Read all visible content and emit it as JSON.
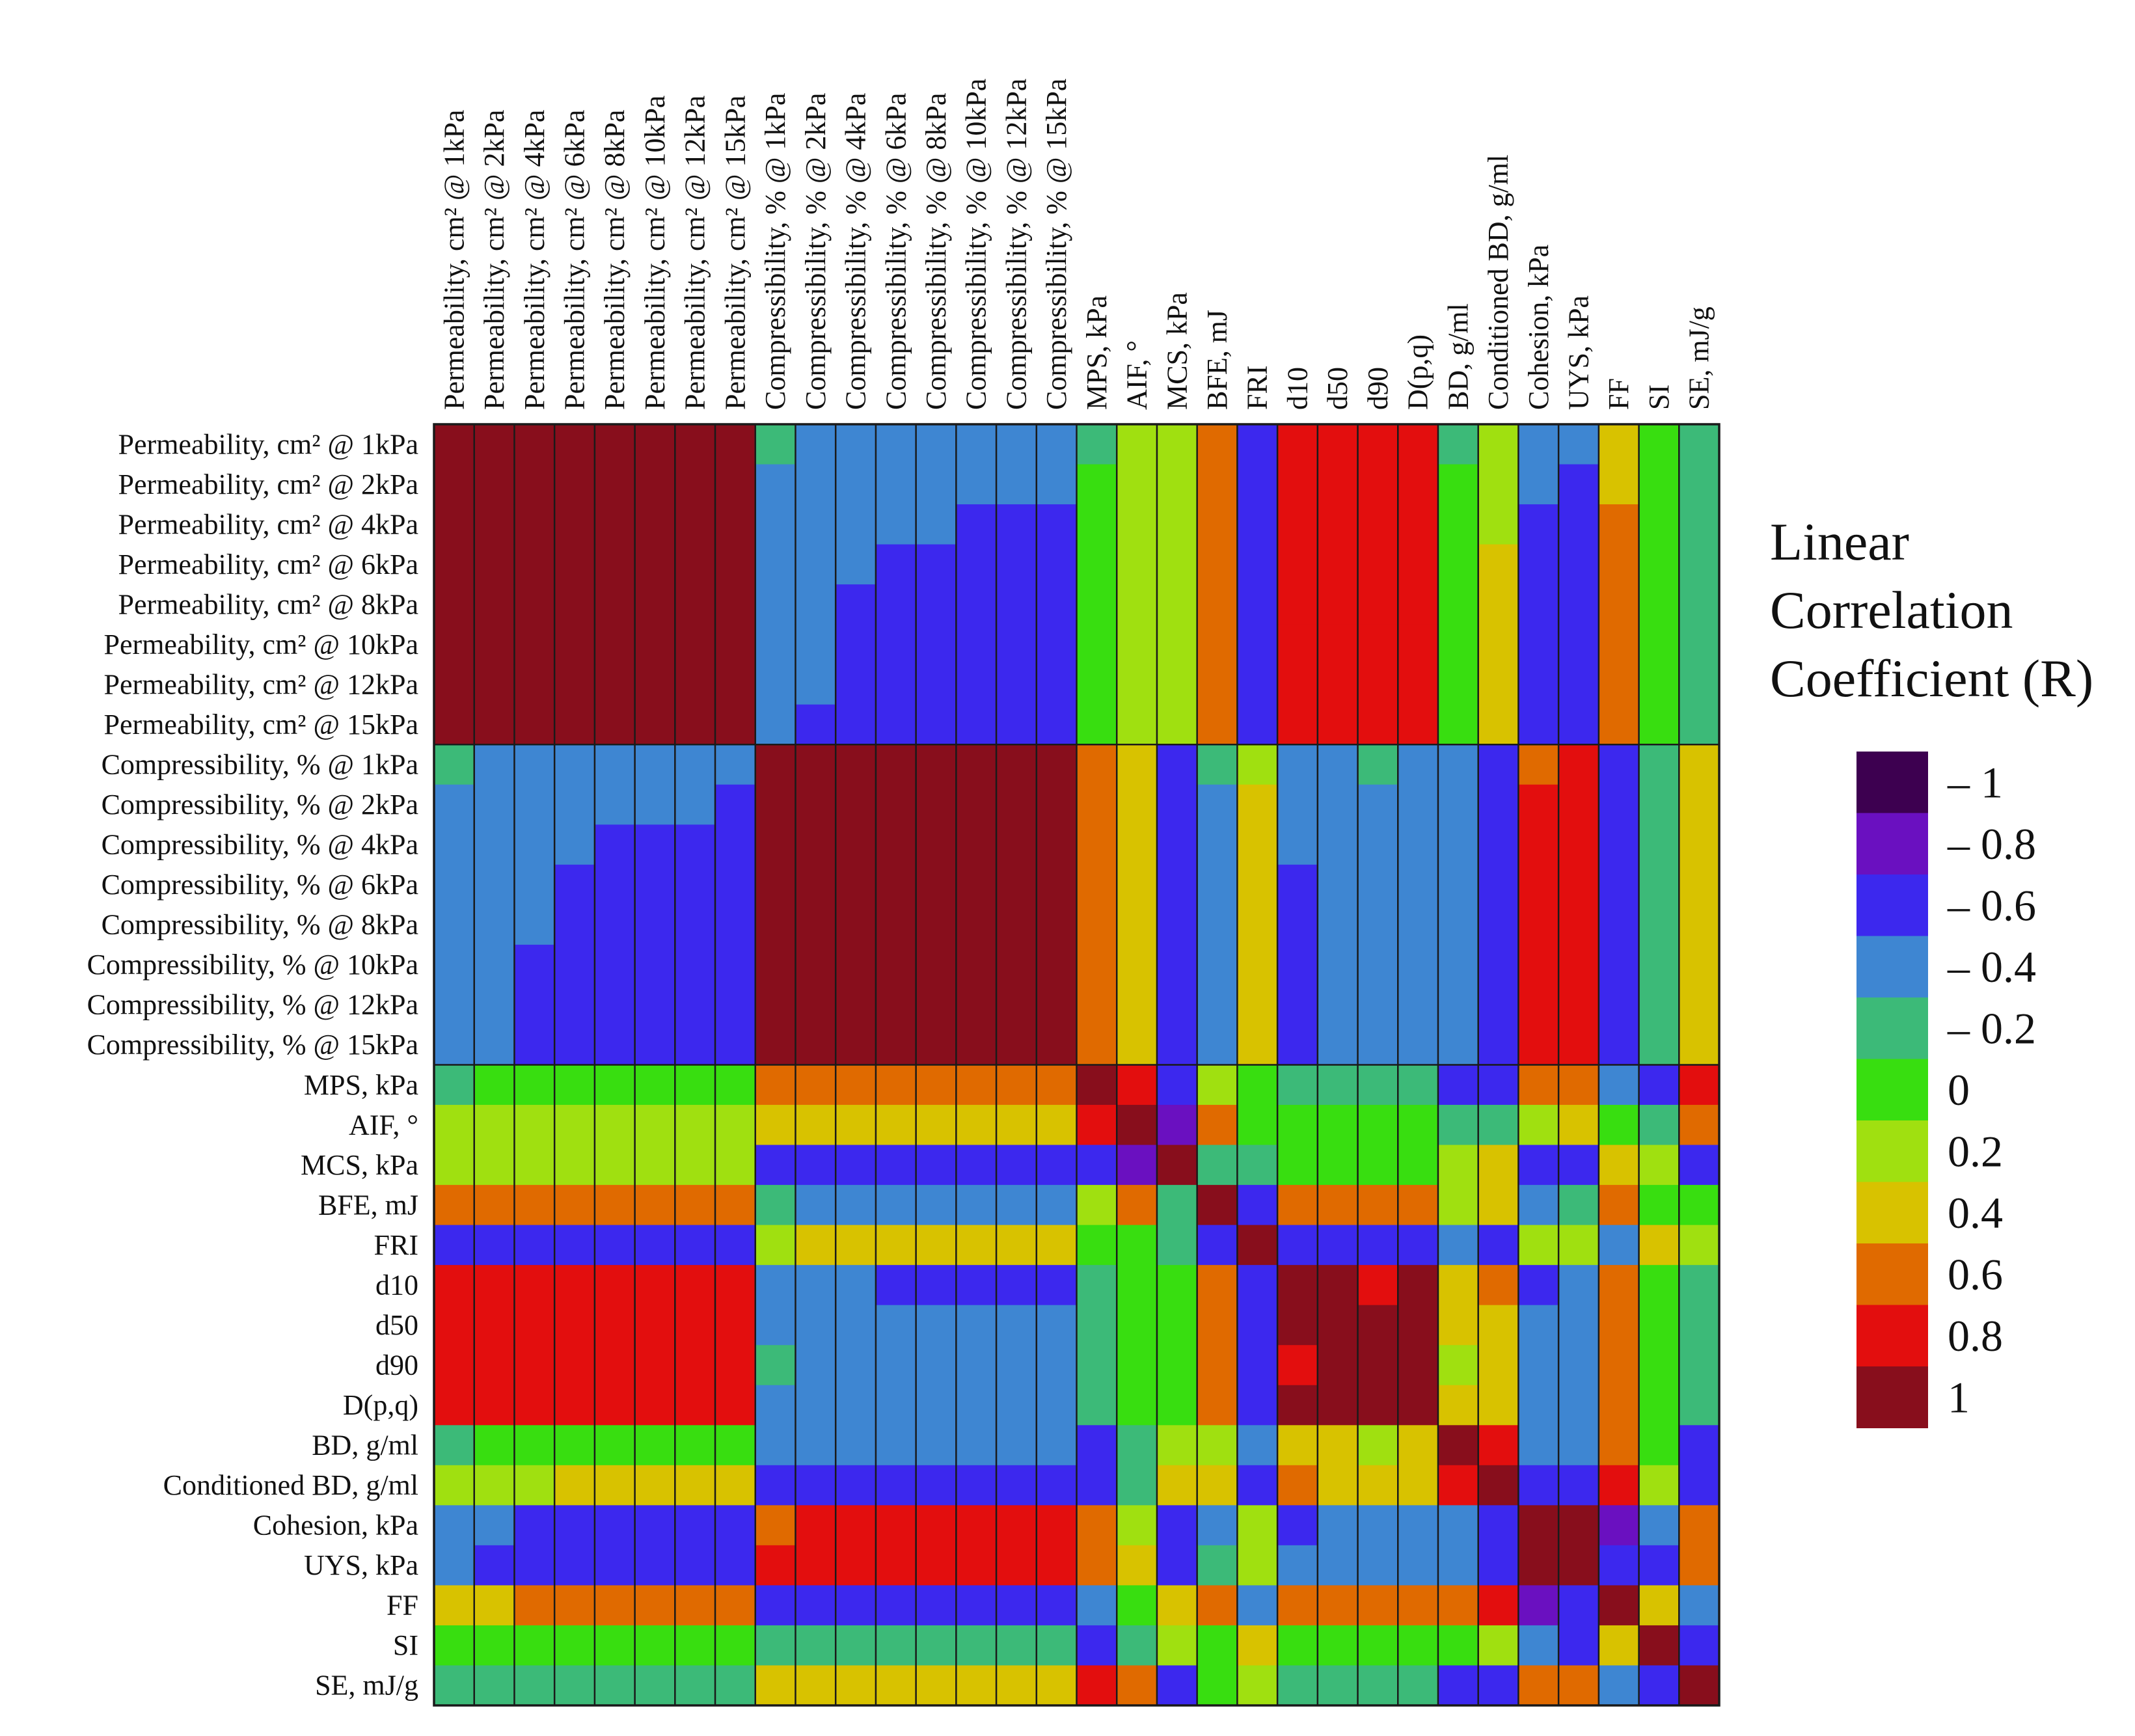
{
  "chart_data": {
    "type": "heatmap",
    "title": "",
    "variables": [
      "Permeability, cm² @ 1kPa",
      "Permeability, cm² @ 2kPa",
      "Permeability, cm² @ 4kPa",
      "Permeability, cm² @ 6kPa",
      "Permeability, cm² @ 8kPa",
      "Permeability, cm² @ 10kPa",
      "Permeability, cm² @ 12kPa",
      "Permeability, cm² @ 15kPa",
      "Compressibility, % @ 1kPa",
      "Compressibility, % @ 2kPa",
      "Compressibility, % @ 4kPa",
      "Compressibility, % @ 6kPa",
      "Compressibility, % @ 8kPa",
      "Compressibility, % @ 10kPa",
      "Compressibility, % @ 12kPa",
      "Compressibility, % @ 15kPa",
      "MPS, kPa",
      "AIF, °",
      "MCS, kPa",
      "BFE, mJ",
      "FRI",
      "d10",
      "d50",
      "d90",
      "D(p,q)",
      "BD, g/ml",
      "Conditioned BD, g/ml",
      "Cohesion, kPa",
      "UYS, kPa",
      "FF",
      "SI",
      "SE, mJ/g"
    ],
    "matrix": [
      [
        1,
        0.98,
        0.96,
        0.96,
        0.95,
        0.95,
        0.95,
        0.95,
        -0.3,
        -0.32,
        -0.35,
        -0.38,
        -0.4,
        -0.42,
        -0.43,
        -0.45,
        -0.1,
        0.12,
        0.15,
        0.55,
        -0.55,
        0.75,
        0.82,
        0.8,
        0.78,
        -0.1,
        0.2,
        -0.4,
        -0.45,
        0.45,
        0.05,
        -0.2
      ],
      [
        0.98,
        1,
        0.98,
        0.97,
        0.97,
        0.96,
        0.96,
        0.96,
        -0.32,
        -0.35,
        -0.38,
        -0.4,
        -0.42,
        -0.44,
        -0.45,
        -0.47,
        -0.08,
        0.13,
        0.17,
        0.56,
        -0.55,
        0.76,
        0.83,
        0.81,
        0.79,
        -0.05,
        0.25,
        -0.45,
        -0.5,
        0.47,
        0.05,
        -0.2
      ],
      [
        0.96,
        0.98,
        1,
        0.99,
        0.98,
        0.98,
        0.97,
        0.97,
        -0.38,
        -0.42,
        -0.45,
        -0.47,
        -0.48,
        -0.5,
        -0.5,
        -0.52,
        -0.05,
        0.14,
        0.18,
        0.57,
        -0.55,
        0.8,
        0.86,
        0.84,
        0.82,
        0.0,
        0.3,
        -0.5,
        -0.52,
        0.52,
        0.0,
        -0.25
      ],
      [
        0.96,
        0.97,
        0.99,
        1,
        0.99,
        0.99,
        0.98,
        0.98,
        -0.4,
        -0.45,
        -0.48,
        -0.5,
        -0.5,
        -0.52,
        -0.52,
        -0.55,
        -0.05,
        0.15,
        0.19,
        0.58,
        -0.55,
        0.82,
        0.87,
        0.85,
        0.84,
        0.0,
        0.35,
        -0.52,
        -0.55,
        0.55,
        0.0,
        -0.25
      ],
      [
        0.95,
        0.97,
        0.98,
        0.99,
        1,
        0.99,
        0.99,
        0.99,
        -0.42,
        -0.47,
        -0.5,
        -0.52,
        -0.52,
        -0.54,
        -0.54,
        -0.56,
        -0.05,
        0.15,
        0.2,
        0.58,
        -0.55,
        0.83,
        0.88,
        0.86,
        0.85,
        0.02,
        0.38,
        -0.55,
        -0.57,
        0.56,
        0.0,
        -0.25
      ],
      [
        0.95,
        0.96,
        0.98,
        0.99,
        0.99,
        1,
        0.99,
        0.99,
        -0.43,
        -0.48,
        -0.5,
        -0.53,
        -0.54,
        -0.55,
        -0.55,
        -0.57,
        -0.05,
        0.15,
        0.2,
        0.58,
        -0.56,
        0.84,
        0.88,
        0.87,
        0.86,
        0.02,
        0.4,
        -0.56,
        -0.58,
        0.57,
        0.0,
        -0.25
      ],
      [
        0.95,
        0.96,
        0.97,
        0.98,
        0.99,
        0.99,
        1,
        0.99,
        -0.44,
        -0.48,
        -0.51,
        -0.54,
        -0.55,
        -0.56,
        -0.56,
        -0.58,
        -0.05,
        0.15,
        0.2,
        0.58,
        -0.56,
        0.84,
        0.88,
        0.87,
        0.86,
        0.03,
        0.4,
        -0.57,
        -0.58,
        0.58,
        0.0,
        -0.25
      ],
      [
        0.95,
        0.96,
        0.97,
        0.98,
        0.99,
        0.99,
        0.99,
        1,
        -0.45,
        -0.5,
        -0.52,
        -0.55,
        -0.56,
        -0.57,
        -0.58,
        -0.6,
        -0.05,
        0.15,
        0.2,
        0.58,
        -0.56,
        0.84,
        0.88,
        0.87,
        0.86,
        0.03,
        0.42,
        -0.58,
        -0.6,
        0.6,
        0.0,
        -0.25
      ],
      [
        -0.3,
        -0.32,
        -0.38,
        -0.4,
        -0.42,
        -0.43,
        -0.44,
        -0.45,
        1,
        0.99,
        0.98,
        0.97,
        0.97,
        0.96,
        0.96,
        0.95,
        0.55,
        0.35,
        -0.5,
        -0.3,
        0.25,
        -0.4,
        -0.35,
        -0.3,
        -0.4,
        -0.4,
        -0.6,
        0.7,
        0.8,
        -0.6,
        -0.2,
        0.4
      ],
      [
        -0.32,
        -0.35,
        -0.42,
        -0.45,
        -0.47,
        -0.48,
        -0.48,
        -0.5,
        0.99,
        1,
        0.99,
        0.98,
        0.98,
        0.97,
        0.97,
        0.96,
        0.56,
        0.36,
        -0.52,
        -0.32,
        0.35,
        -0.45,
        -0.4,
        -0.35,
        -0.42,
        -0.4,
        -0.62,
        0.75,
        0.82,
        -0.62,
        -0.2,
        0.4
      ],
      [
        -0.35,
        -0.38,
        -0.45,
        -0.48,
        -0.5,
        -0.5,
        -0.51,
        -0.52,
        0.98,
        0.99,
        1,
        0.99,
        0.99,
        0.98,
        0.98,
        0.97,
        0.57,
        0.37,
        -0.53,
        -0.33,
        0.38,
        -0.47,
        -0.42,
        -0.37,
        -0.44,
        -0.42,
        -0.63,
        0.78,
        0.83,
        -0.63,
        -0.2,
        0.42
      ],
      [
        -0.38,
        -0.4,
        -0.47,
        -0.5,
        -0.52,
        -0.53,
        -0.54,
        -0.55,
        0.97,
        0.98,
        0.99,
        1,
        0.99,
        0.99,
        0.99,
        0.98,
        0.58,
        0.38,
        -0.54,
        -0.35,
        0.4,
        -0.5,
        -0.44,
        -0.4,
        -0.46,
        -0.43,
        -0.64,
        0.8,
        0.84,
        -0.64,
        -0.2,
        0.42
      ],
      [
        -0.4,
        -0.42,
        -0.48,
        -0.5,
        -0.52,
        -0.54,
        -0.55,
        -0.56,
        0.97,
        0.98,
        0.99,
        0.99,
        1,
        0.99,
        0.99,
        0.99,
        0.58,
        0.38,
        -0.55,
        -0.36,
        0.4,
        -0.5,
        -0.45,
        -0.4,
        -0.47,
        -0.43,
        -0.64,
        0.8,
        0.84,
        -0.64,
        -0.2,
        0.42
      ],
      [
        -0.42,
        -0.44,
        -0.5,
        -0.52,
        -0.54,
        -0.55,
        -0.56,
        -0.57,
        0.96,
        0.97,
        0.98,
        0.99,
        0.99,
        1,
        0.99,
        0.99,
        0.58,
        0.37,
        -0.55,
        -0.37,
        0.4,
        -0.52,
        -0.46,
        -0.42,
        -0.48,
        -0.44,
        -0.65,
        0.8,
        0.84,
        -0.65,
        -0.2,
        0.42
      ],
      [
        -0.43,
        -0.45,
        -0.5,
        -0.52,
        -0.54,
        -0.55,
        -0.56,
        -0.58,
        0.96,
        0.97,
        0.98,
        0.99,
        0.99,
        0.99,
        1,
        0.99,
        0.58,
        0.37,
        -0.55,
        -0.37,
        0.4,
        -0.52,
        -0.46,
        -0.42,
        -0.48,
        -0.44,
        -0.65,
        0.8,
        0.84,
        -0.65,
        -0.2,
        0.42
      ],
      [
        -0.45,
        -0.47,
        -0.52,
        -0.55,
        -0.56,
        -0.57,
        -0.58,
        -0.6,
        0.95,
        0.96,
        0.97,
        0.98,
        0.99,
        0.99,
        0.99,
        1,
        0.58,
        0.36,
        -0.55,
        -0.38,
        0.4,
        -0.53,
        -0.47,
        -0.43,
        -0.49,
        -0.45,
        -0.66,
        0.8,
        0.84,
        -0.66,
        -0.2,
        0.42
      ],
      [
        -0.1,
        -0.08,
        -0.05,
        -0.05,
        -0.05,
        -0.05,
        -0.05,
        -0.05,
        0.55,
        0.56,
        0.57,
        0.58,
        0.58,
        0.58,
        0.58,
        0.58,
        1,
        0.8,
        -0.6,
        0.2,
        0.05,
        -0.2,
        -0.2,
        -0.15,
        -0.2,
        -0.5,
        -0.55,
        0.6,
        0.7,
        -0.4,
        -0.5,
        0.8
      ],
      [
        0.12,
        0.13,
        0.14,
        0.15,
        0.15,
        0.15,
        0.15,
        0.15,
        0.35,
        0.36,
        0.37,
        0.38,
        0.38,
        0.37,
        0.37,
        0.36,
        0.8,
        1,
        -0.75,
        0.55,
        0.0,
        0.05,
        0.05,
        0.05,
        0.05,
        -0.25,
        -0.25,
        0.2,
        0.4,
        0.05,
        -0.15,
        0.6
      ],
      [
        0.15,
        0.17,
        0.18,
        0.19,
        0.2,
        0.2,
        0.2,
        0.2,
        -0.5,
        -0.52,
        -0.53,
        -0.54,
        -0.55,
        -0.55,
        -0.55,
        -0.55,
        -0.6,
        -0.75,
        1,
        -0.2,
        -0.15,
        0.0,
        0.0,
        0.0,
        0.05,
        0.2,
        0.35,
        -0.5,
        -0.65,
        0.35,
        0.15,
        -0.5
      ],
      [
        0.55,
        0.56,
        0.57,
        0.58,
        0.58,
        0.58,
        0.58,
        0.58,
        -0.3,
        -0.32,
        -0.33,
        -0.35,
        -0.36,
        -0.37,
        -0.37,
        -0.38,
        0.2,
        0.55,
        -0.2,
        1,
        -0.5,
        0.7,
        0.65,
        0.6,
        0.6,
        0.25,
        0.5,
        -0.4,
        -0.3,
        0.55,
        0.05,
        0.1
      ],
      [
        -0.55,
        -0.55,
        -0.55,
        -0.55,
        -0.55,
        -0.56,
        -0.56,
        -0.56,
        0.25,
        0.35,
        0.38,
        0.4,
        0.4,
        0.4,
        0.4,
        0.4,
        0.05,
        0.0,
        -0.15,
        -0.5,
        1,
        -0.65,
        -0.65,
        -0.65,
        -0.65,
        -0.4,
        -0.5,
        0.3,
        0.25,
        -0.4,
        0.4,
        0.25
      ],
      [
        0.75,
        0.76,
        0.8,
        0.82,
        0.83,
        0.84,
        0.84,
        0.84,
        -0.4,
        -0.45,
        -0.47,
        -0.5,
        -0.5,
        -0.52,
        -0.52,
        -0.53,
        -0.2,
        0.05,
        0.0,
        0.7,
        -0.65,
        1,
        0.95,
        0.9,
        0.92,
        0.45,
        0.6,
        -0.5,
        -0.45,
        0.7,
        0.05,
        -0.2
      ],
      [
        0.82,
        0.83,
        0.86,
        0.87,
        0.88,
        0.88,
        0.88,
        0.88,
        -0.35,
        -0.4,
        -0.42,
        -0.44,
        -0.45,
        -0.46,
        -0.46,
        -0.47,
        -0.2,
        0.05,
        0.0,
        0.65,
        -0.65,
        0.95,
        1,
        0.98,
        0.96,
        0.4,
        0.5,
        -0.45,
        -0.42,
        0.6,
        0.05,
        -0.3
      ],
      [
        0.8,
        0.81,
        0.84,
        0.85,
        0.86,
        0.87,
        0.87,
        0.87,
        -0.3,
        -0.35,
        -0.37,
        -0.4,
        -0.4,
        -0.42,
        -0.42,
        -0.43,
        -0.15,
        0.05,
        0.0,
        0.6,
        -0.65,
        0.9,
        0.98,
        1,
        0.94,
        0.3,
        0.4,
        -0.4,
        -0.38,
        0.55,
        0.05,
        -0.25
      ],
      [
        0.78,
        0.79,
        0.82,
        0.84,
        0.85,
        0.86,
        0.86,
        0.86,
        -0.4,
        -0.42,
        -0.44,
        -0.46,
        -0.47,
        -0.48,
        -0.48,
        -0.49,
        -0.2,
        0.05,
        0.05,
        0.6,
        -0.65,
        0.92,
        0.96,
        0.94,
        1,
        0.35,
        0.5,
        -0.45,
        -0.42,
        0.6,
        0.05,
        -0.3
      ],
      [
        -0.1,
        -0.05,
        0.0,
        0.0,
        0.02,
        0.02,
        0.03,
        0.03,
        -0.4,
        -0.4,
        -0.42,
        -0.43,
        -0.43,
        -0.44,
        -0.44,
        -0.45,
        -0.5,
        -0.25,
        0.2,
        0.25,
        -0.4,
        0.45,
        0.4,
        0.3,
        0.35,
        1,
        0.8,
        -0.4,
        -0.45,
        0.55,
        0.1,
        -0.55
      ],
      [
        0.2,
        0.25,
        0.3,
        0.35,
        0.38,
        0.4,
        0.4,
        0.42,
        -0.6,
        -0.62,
        -0.63,
        -0.64,
        -0.64,
        -0.65,
        -0.65,
        -0.66,
        -0.55,
        -0.25,
        0.35,
        0.5,
        -0.5,
        0.6,
        0.5,
        0.4,
        0.5,
        0.8,
        1,
        -0.6,
        -0.6,
        0.75,
        0.2,
        -0.6
      ],
      [
        -0.4,
        -0.45,
        -0.5,
        -0.52,
        -0.55,
        -0.56,
        -0.57,
        -0.58,
        0.7,
        0.75,
        0.78,
        0.8,
        0.8,
        0.8,
        0.8,
        0.8,
        0.6,
        0.2,
        -0.5,
        -0.4,
        0.3,
        -0.5,
        -0.45,
        -0.4,
        -0.45,
        -0.4,
        -0.6,
        1,
        0.97,
        -0.75,
        -0.45,
        0.6
      ],
      [
        -0.45,
        -0.5,
        -0.52,
        -0.55,
        -0.57,
        -0.58,
        -0.58,
        -0.6,
        0.8,
        0.82,
        0.83,
        0.84,
        0.84,
        0.84,
        0.84,
        0.84,
        0.7,
        0.4,
        -0.65,
        -0.3,
        0.25,
        -0.45,
        -0.42,
        -0.38,
        -0.42,
        -0.45,
        -0.6,
        0.97,
        1,
        -0.7,
        -0.5,
        0.7
      ],
      [
        0.45,
        0.47,
        0.52,
        0.55,
        0.56,
        0.57,
        0.58,
        0.6,
        -0.6,
        -0.62,
        -0.63,
        -0.64,
        -0.64,
        -0.65,
        -0.65,
        -0.66,
        -0.4,
        0.05,
        0.35,
        0.55,
        -0.4,
        0.7,
        0.6,
        0.55,
        0.6,
        0.55,
        0.75,
        -0.75,
        -0.7,
        1,
        0.35,
        -0.4
      ],
      [
        0.05,
        0.05,
        0.0,
        0.0,
        0.0,
        0.0,
        0.0,
        0.0,
        -0.2,
        -0.2,
        -0.2,
        -0.2,
        -0.2,
        -0.2,
        -0.2,
        -0.2,
        -0.5,
        -0.15,
        0.15,
        0.05,
        0.4,
        0.05,
        0.05,
        0.05,
        0.05,
        0.1,
        0.2,
        -0.45,
        -0.5,
        0.35,
        1,
        -0.6
      ],
      [
        -0.2,
        -0.2,
        -0.25,
        -0.25,
        -0.25,
        -0.25,
        -0.25,
        -0.25,
        0.4,
        0.4,
        0.42,
        0.42,
        0.42,
        0.42,
        0.42,
        0.42,
        0.8,
        0.6,
        -0.5,
        0.1,
        0.25,
        -0.2,
        -0.3,
        -0.25,
        -0.3,
        -0.55,
        -0.6,
        0.6,
        0.7,
        -0.4,
        -0.6,
        1
      ]
    ],
    "colorbar": {
      "title": [
        "Linear",
        "Correlation",
        "Coefficient (R)"
      ],
      "labels": [
        "– 1",
        "– 0.8",
        "– 0.6",
        "– 0.4",
        "– 0.2",
        "0",
        "0.2",
        "0.4",
        "0.6",
        "0.8",
        "1"
      ],
      "bins": [
        -1,
        -0.8,
        -0.6,
        -0.4,
        -0.2,
        0,
        0.2,
        0.4,
        0.6,
        0.8,
        1
      ],
      "colors": [
        "#3d0050",
        "#6a10c0",
        "#3c28ee",
        "#3e86d2",
        "#3cba78",
        "#38de10",
        "#a0e010",
        "#d8c200",
        "#e06a00",
        "#e30e0e",
        "#880e1c"
      ]
    }
  }
}
